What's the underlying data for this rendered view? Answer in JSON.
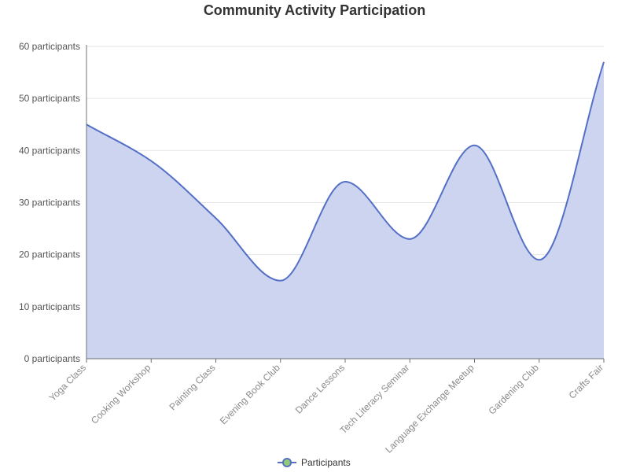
{
  "chart_data": {
    "type": "area",
    "title": "Community Activity Participation",
    "categories": [
      "Yoga Class",
      "Cooking Workshop",
      "Painting Class",
      "Evening Book Club",
      "Dance Lessons",
      "Tech Literacy Seminar",
      "Language Exchange Meetup",
      "Gardening Club",
      "Crafts Fair"
    ],
    "series": [
      {
        "name": "Participants",
        "values": [
          45,
          38,
          27,
          15,
          34,
          23,
          41,
          19,
          57
        ]
      }
    ],
    "ylim": [
      0,
      60
    ],
    "yticks": [
      0,
      10,
      20,
      30,
      40,
      50,
      60
    ],
    "ytick_suffix": " participants",
    "smooth": true,
    "grid": true,
    "legend_position": "bottom-center",
    "colors": {
      "line": "#5470c6",
      "area": "#ccd4ef",
      "grid": "#e6e6e6",
      "axis": "#6e7079",
      "legend_dot": "#91cc75"
    }
  }
}
